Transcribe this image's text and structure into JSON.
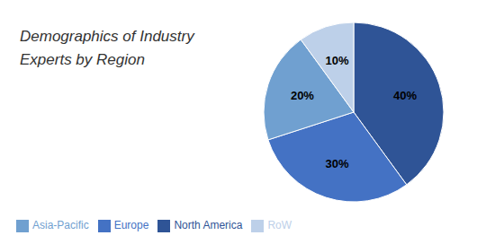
{
  "chart_data": {
    "type": "pie",
    "title": "Demographics of Industry\nExperts by Region",
    "categories": [
      "North America",
      "Europe",
      "Asia-Pacific",
      "RoW"
    ],
    "values": [
      40,
      30,
      20,
      10
    ],
    "value_labels": [
      "40%",
      "30%",
      "20%",
      "10%"
    ],
    "colors": [
      "#2F5496",
      "#4472C4",
      "#70A0D0",
      "#BDD0E9"
    ],
    "data_labels": true,
    "legend": "lower left"
  }
}
